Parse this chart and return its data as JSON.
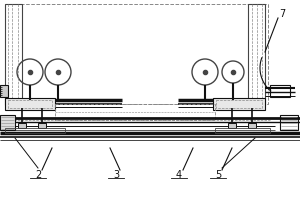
{
  "bg_color": "#ffffff",
  "line_color": "#444444",
  "dark_line": "#111111",
  "dashed_color": "#888888",
  "gray_fill": "#cccccc",
  "figsize": [
    3.0,
    2.0
  ],
  "dpi": 100
}
